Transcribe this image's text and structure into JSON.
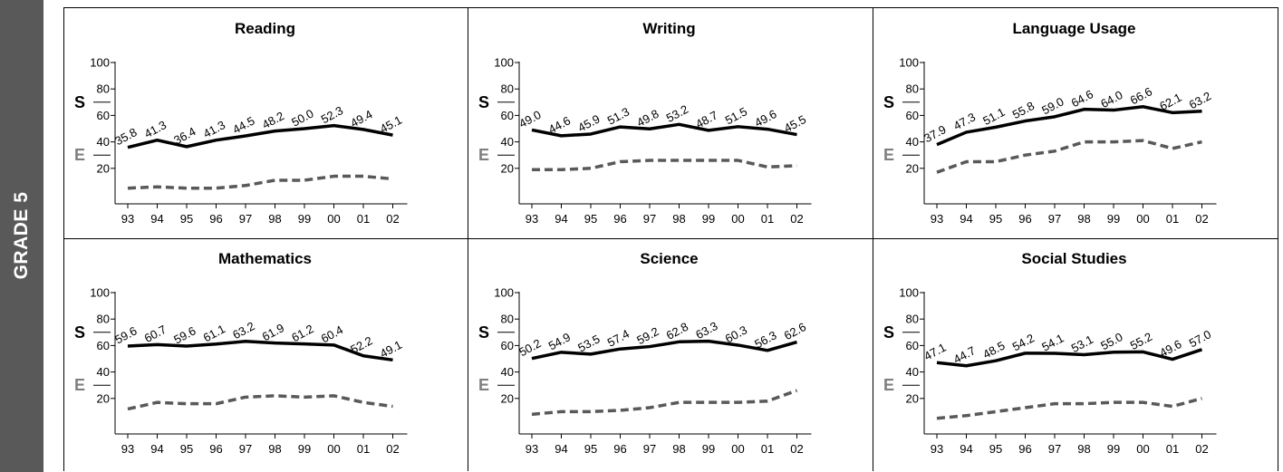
{
  "side_label": "GRADE 5",
  "legend": {
    "s": "S",
    "e": "E"
  },
  "colors": {
    "school": "#000000",
    "state": "#595959",
    "band": "#595959",
    "e_label": "#7f7f7f"
  },
  "chart_data": [
    {
      "type": "line",
      "title": "Reading",
      "categories": [
        "93",
        "94",
        "95",
        "96",
        "97",
        "98",
        "99",
        "00",
        "01",
        "02"
      ],
      "yticks": [
        "20",
        "40",
        "60",
        "80",
        "100"
      ],
      "ylim": [
        0,
        100
      ],
      "series": [
        {
          "name": "S",
          "values": [
            35.8,
            41.3,
            36.4,
            41.3,
            44.5,
            48.2,
            50.0,
            52.3,
            49.4,
            45.1
          ],
          "labels": [
            "35.8",
            "41.3",
            "36.4",
            "41.3",
            "44.5",
            "48.2",
            "50.0",
            "52.3",
            "49.4",
            "45.1"
          ]
        },
        {
          "name": "E",
          "values": [
            5,
            6,
            5,
            5,
            7,
            11,
            11,
            14,
            14,
            12
          ]
        }
      ]
    },
    {
      "type": "line",
      "title": "Writing",
      "categories": [
        "93",
        "94",
        "95",
        "96",
        "97",
        "98",
        "99",
        "00",
        "01",
        "02"
      ],
      "yticks": [
        "20",
        "40",
        "60",
        "80",
        "100"
      ],
      "ylim": [
        0,
        100
      ],
      "series": [
        {
          "name": "S",
          "values": [
            49.0,
            44.6,
            45.9,
            51.3,
            49.8,
            53.2,
            48.7,
            51.5,
            49.6,
            45.5
          ],
          "labels": [
            "49.0",
            "44.6",
            "45.9",
            "51.3",
            "49.8",
            "53.2",
            "48.7",
            "51.5",
            "49.6",
            "45.5"
          ]
        },
        {
          "name": "E",
          "values": [
            19,
            19,
            20,
            25,
            26,
            26,
            26,
            26,
            21,
            22
          ]
        }
      ]
    },
    {
      "type": "line",
      "title": "Language Usage",
      "categories": [
        "93",
        "94",
        "95",
        "96",
        "97",
        "98",
        "99",
        "00",
        "01",
        "02"
      ],
      "yticks": [
        "20",
        "40",
        "60",
        "80",
        "100"
      ],
      "ylim": [
        0,
        100
      ],
      "series": [
        {
          "name": "S",
          "values": [
            37.9,
            47.3,
            51.1,
            55.8,
            59.0,
            64.6,
            64.0,
            66.6,
            62.1,
            63.2
          ],
          "labels": [
            "37.9",
            "47.3",
            "51.1",
            "55.8",
            "59.0",
            "64.6",
            "64.0",
            "66.6",
            "62.1",
            "63.2"
          ]
        },
        {
          "name": "E",
          "values": [
            17,
            25,
            25,
            30,
            33,
            40,
            40,
            41,
            35,
            40
          ]
        }
      ]
    },
    {
      "type": "line",
      "title": "Mathematics",
      "categories": [
        "93",
        "94",
        "95",
        "96",
        "97",
        "98",
        "99",
        "00",
        "01",
        "02"
      ],
      "yticks": [
        "20",
        "40",
        "60",
        "80",
        "100"
      ],
      "ylim": [
        0,
        100
      ],
      "series": [
        {
          "name": "S",
          "values": [
            59.6,
            60.7,
            59.6,
            61.1,
            63.2,
            61.9,
            61.2,
            60.4,
            52.2,
            49.1
          ],
          "labels": [
            "59.6",
            "60.7",
            "59.6",
            "61.1",
            "63.2",
            "61.9",
            "61.2",
            "60.4",
            "52.2",
            "49.1"
          ]
        },
        {
          "name": "E",
          "values": [
            12,
            17,
            16,
            16,
            21,
            22,
            21,
            22,
            17,
            14
          ]
        }
      ]
    },
    {
      "type": "line",
      "title": "Science",
      "categories": [
        "93",
        "94",
        "95",
        "96",
        "97",
        "98",
        "99",
        "00",
        "01",
        "02"
      ],
      "yticks": [
        "20",
        "40",
        "60",
        "80",
        "100"
      ],
      "ylim": [
        0,
        100
      ],
      "series": [
        {
          "name": "S",
          "values": [
            50.2,
            54.9,
            53.5,
            57.4,
            59.2,
            62.8,
            63.3,
            60.3,
            56.3,
            62.6
          ],
          "labels": [
            "50.2",
            "54.9",
            "53.5",
            "57.4",
            "59.2",
            "62.8",
            "63.3",
            "60.3",
            "56.3",
            "62.6"
          ]
        },
        {
          "name": "E",
          "values": [
            8,
            10,
            10,
            11,
            13,
            17,
            17,
            17,
            18,
            26
          ]
        }
      ]
    },
    {
      "type": "line",
      "title": "Social Studies",
      "categories": [
        "93",
        "94",
        "95",
        "96",
        "97",
        "98",
        "99",
        "00",
        "01",
        "02"
      ],
      "yticks": [
        "20",
        "40",
        "60",
        "80",
        "100"
      ],
      "ylim": [
        0,
        100
      ],
      "series": [
        {
          "name": "S",
          "values": [
            47.1,
            44.7,
            48.5,
            54.2,
            54.1,
            53.1,
            55.0,
            55.2,
            49.6,
            57.0
          ],
          "labels": [
            "47.1",
            "44.7",
            "48.5",
            "54.2",
            "54.1",
            "53.1",
            "55.0",
            "55.2",
            "49.6",
            "57.0"
          ]
        },
        {
          "name": "E",
          "values": [
            5,
            7,
            10,
            13,
            16,
            16,
            17,
            17,
            14,
            20
          ]
        }
      ]
    }
  ]
}
